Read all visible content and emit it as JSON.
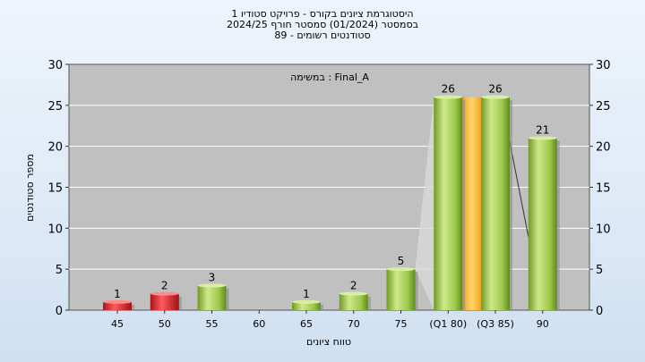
{
  "chart_data": {
    "type": "bar",
    "title_lines": [
      "היסטוגרמת ציונים בקורס - פרויקט סטודיו 1",
      "בסמסטר  (01/2024)  סמסטר חורף 2024/25",
      "סטודנטים רשומים - 89"
    ],
    "annotation": "במשימה : Final_A",
    "xlabel": "טווח ציונים",
    "ylabel": "מספר סטודנטים",
    "ylim": [
      0,
      30
    ],
    "yticks": [
      0,
      5,
      10,
      15,
      20,
      25,
      30
    ],
    "grid": true,
    "categories": [
      "45",
      "50",
      "55",
      "60",
      "65",
      "70",
      "75",
      "(Q1 80)",
      "(Q3 85)",
      "90"
    ],
    "values": [
      1,
      2,
      3,
      0,
      1,
      2,
      5,
      26,
      26,
      21
    ],
    "value_labels": [
      "1",
      "2",
      "3",
      "",
      "1",
      "2",
      "5",
      "26",
      "26",
      "21"
    ],
    "bar_colors": [
      "red",
      "red",
      "green",
      "green",
      "green",
      "green",
      "green",
      "green",
      "green",
      "green"
    ],
    "median_marker": {
      "between": [
        "(Q1 80)",
        "(Q3 85)"
      ],
      "value": 26,
      "color": "#ffc94d"
    },
    "colors": {
      "red": "#e0262b",
      "green": "#9cc84a",
      "plot_bg": "#c0c0c0",
      "median": "#ffc94d"
    }
  }
}
